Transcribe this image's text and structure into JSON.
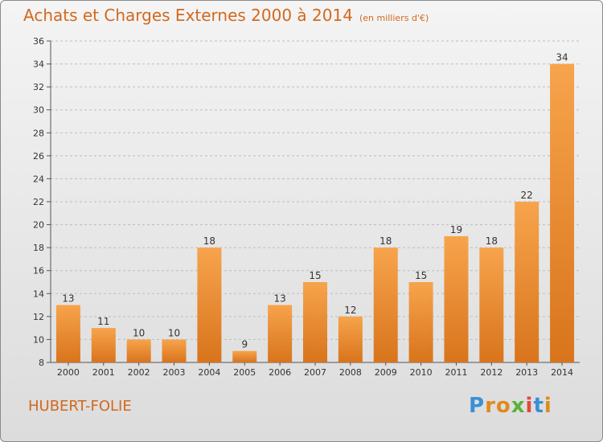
{
  "chart_data": {
    "type": "bar",
    "title": "Achats et Charges Externes 2000 à 2014",
    "subtitle": "(en milliers d'€)",
    "categories": [
      "2000",
      "2001",
      "2002",
      "2003",
      "2004",
      "2005",
      "2006",
      "2007",
      "2008",
      "2009",
      "2010",
      "2011",
      "2012",
      "2013",
      "2014"
    ],
    "values": [
      13,
      11,
      10,
      10,
      18,
      9,
      13,
      15,
      12,
      18,
      15,
      19,
      18,
      22,
      34
    ],
    "ylim": [
      8,
      36
    ],
    "yticks": [
      8,
      10,
      12,
      14,
      16,
      18,
      20,
      22,
      24,
      26,
      28,
      30,
      32,
      34,
      36
    ],
    "grid": true,
    "bar_color": "#f0953a",
    "bar_color_dark": "#d8741c"
  },
  "footer": {
    "place": "HUBERT-FOLIE",
    "logo": "Proxiti"
  }
}
